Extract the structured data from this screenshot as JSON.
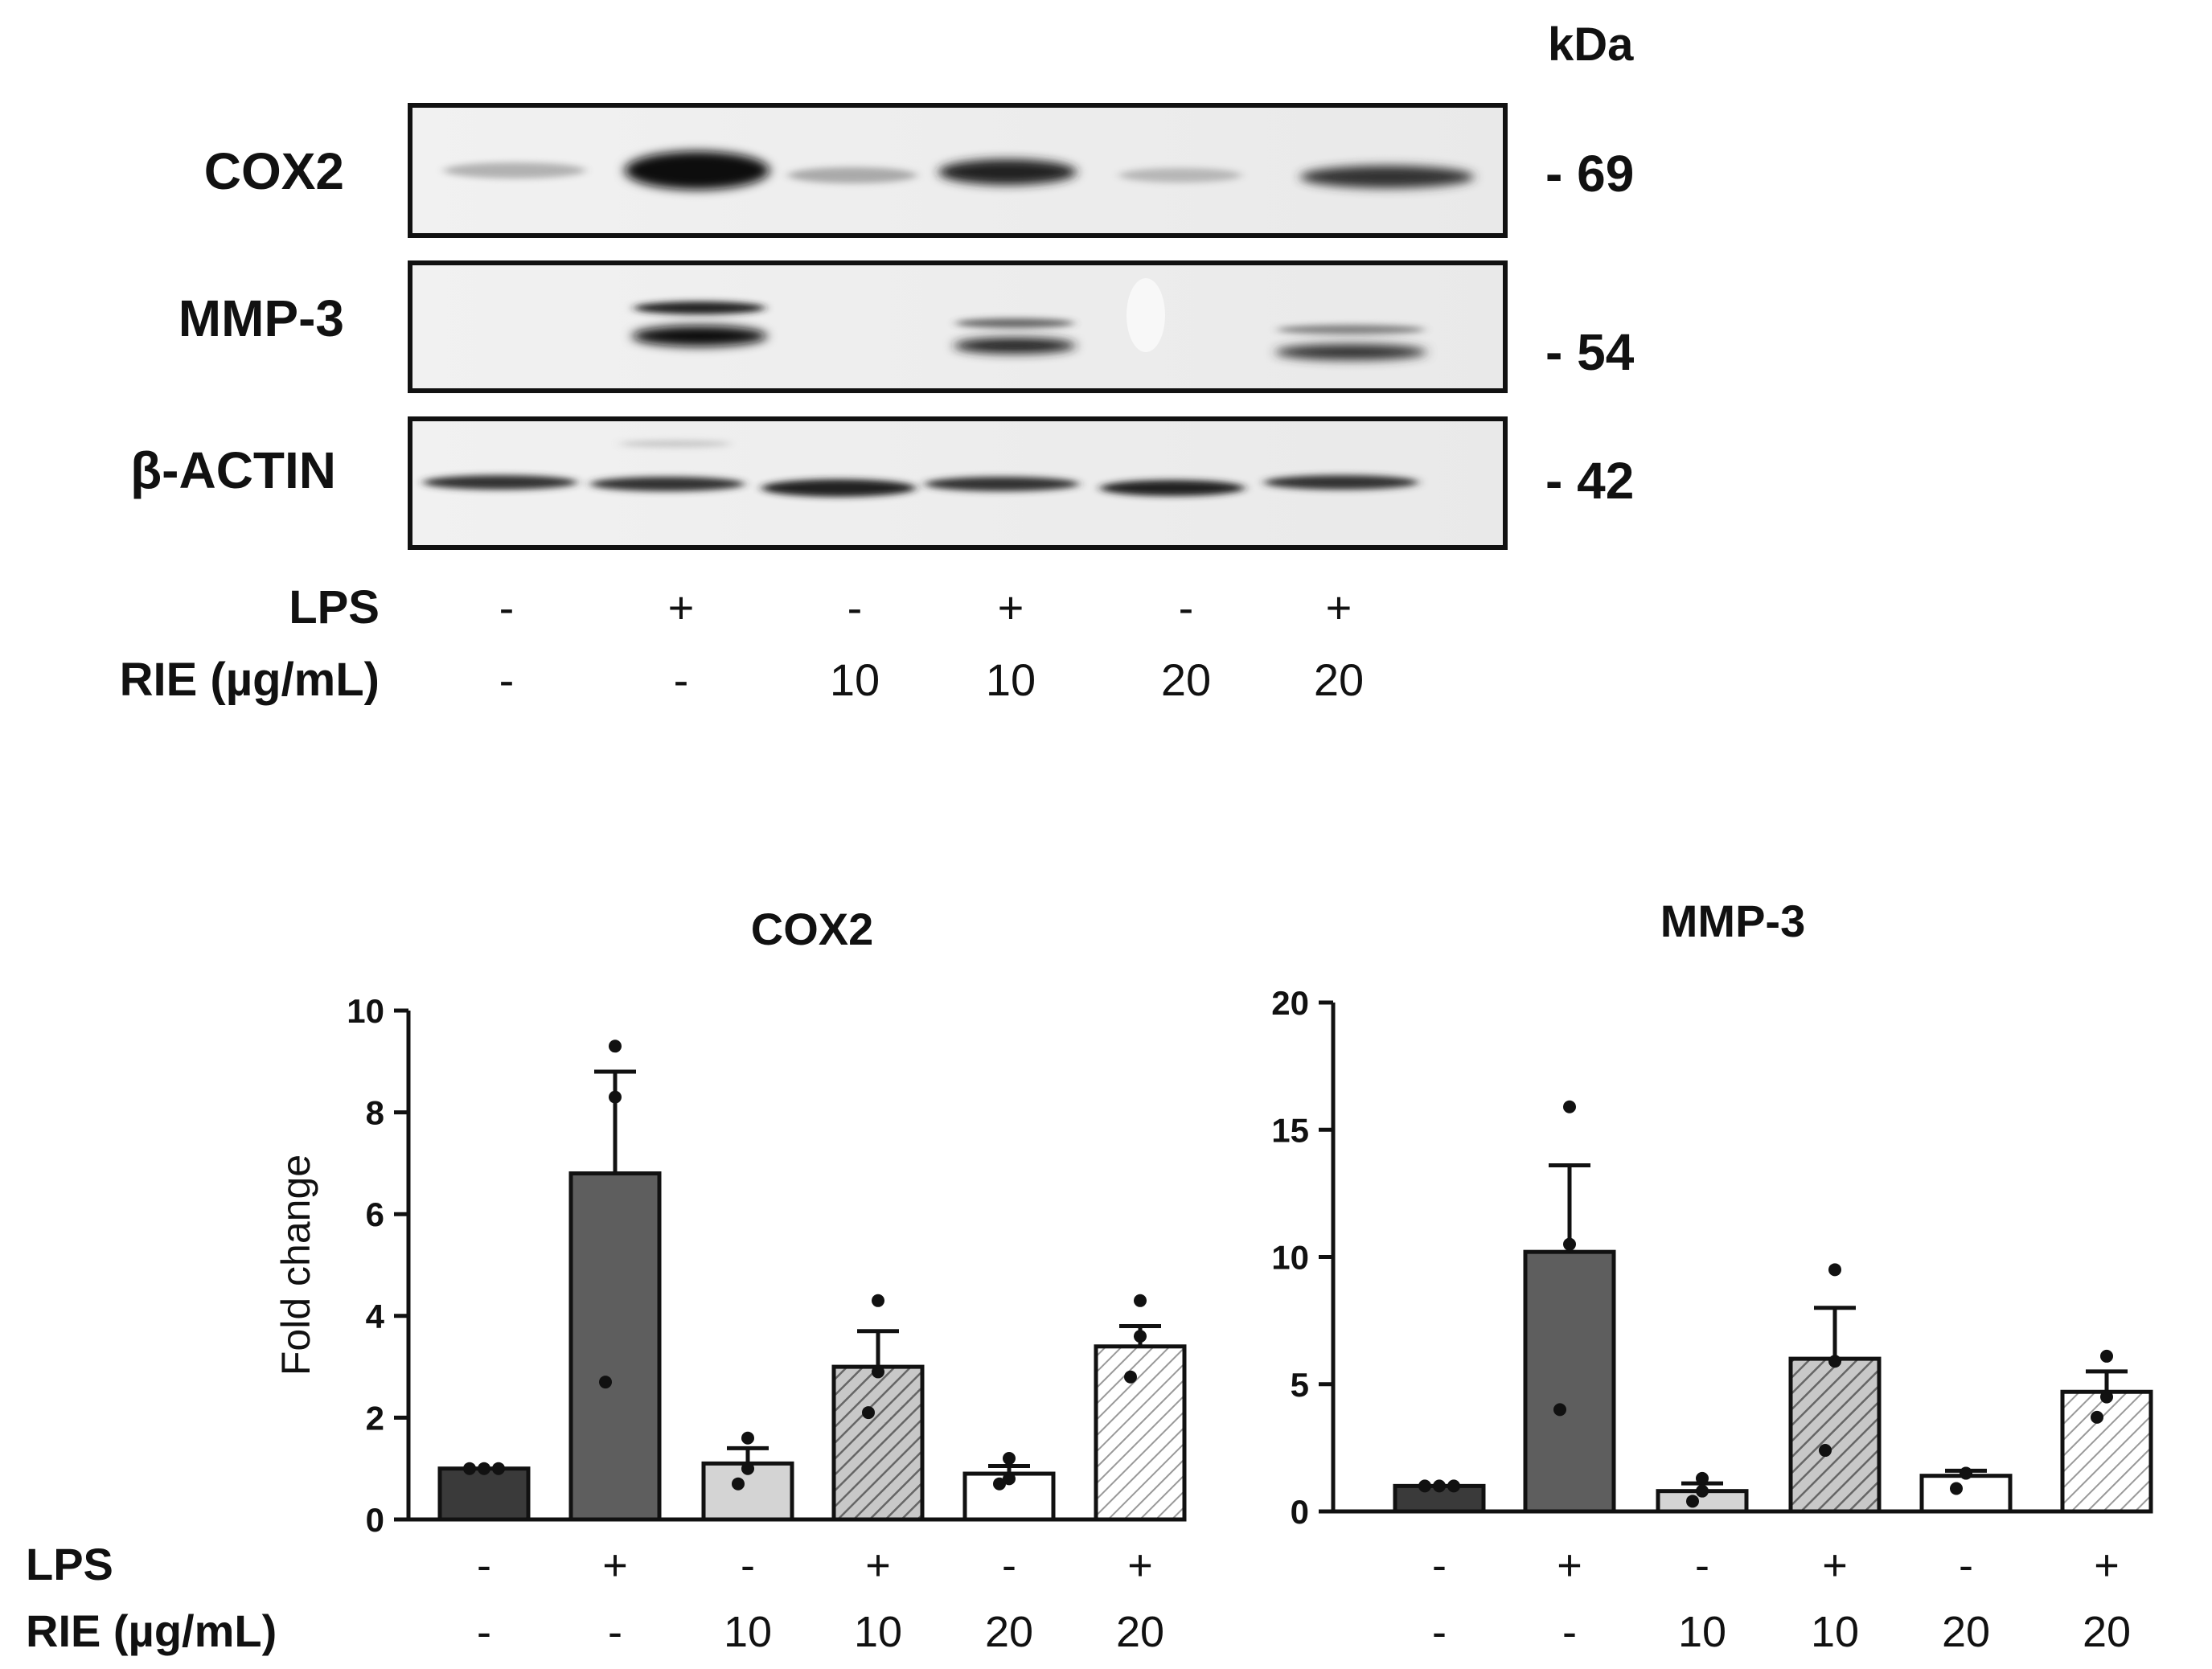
{
  "blot": {
    "kda_label": "kDa",
    "rows": [
      {
        "name": "COX2",
        "marker": "- 69"
      },
      {
        "name": "MMP-3",
        "marker": "- 54"
      },
      {
        "name": "β-ACTIN",
        "marker": "- 42"
      }
    ],
    "lps_label": "LPS",
    "rie_label": "RIE (µg/mL)",
    "lps": [
      "-",
      "+",
      "-",
      "+",
      "-",
      "+"
    ],
    "rie": [
      "-",
      "-",
      "10",
      "10",
      "20",
      "20"
    ]
  },
  "conditions": {
    "lps_label": "LPS",
    "rie_label": "RIE (µg/mL)"
  },
  "chart_data": [
    {
      "type": "bar",
      "title": "COX2",
      "ylabel": "Fold change",
      "xlabel": "",
      "ylim": [
        0,
        10
      ],
      "yticks": [
        0,
        2,
        4,
        6,
        8,
        10
      ],
      "lps": [
        "-",
        "+",
        "-",
        "+",
        "-",
        "+"
      ],
      "rie": [
        "-",
        "-",
        "10",
        "10",
        "20",
        "20"
      ],
      "values": [
        1.0,
        6.8,
        1.1,
        3.0,
        0.9,
        3.4
      ],
      "errors": [
        0.0,
        2.0,
        0.3,
        0.7,
        0.15,
        0.4
      ],
      "points": [
        [
          1.0,
          1.0,
          1.0
        ],
        [
          9.3,
          8.3,
          2.7
        ],
        [
          1.6,
          1.0,
          0.7
        ],
        [
          4.3,
          2.9,
          2.1
        ],
        [
          1.2,
          0.8,
          0.7
        ],
        [
          4.3,
          3.6,
          2.8
        ]
      ],
      "fills": [
        "dark",
        "medium",
        "light",
        "hatch-gray",
        "white",
        "hatch-white"
      ]
    },
    {
      "type": "bar",
      "title": "MMP-3",
      "ylabel": "",
      "xlabel": "",
      "ylim": [
        0,
        20
      ],
      "yticks": [
        0,
        5,
        10,
        15,
        20
      ],
      "lps": [
        "-",
        "+",
        "-",
        "+",
        "-",
        "+"
      ],
      "rie": [
        "-",
        "-",
        "10",
        "10",
        "20",
        "20"
      ],
      "values": [
        1.0,
        10.2,
        0.8,
        6.0,
        1.4,
        4.7
      ],
      "errors": [
        0.0,
        3.4,
        0.3,
        2.0,
        0.2,
        0.8
      ],
      "points": [
        [
          1.0,
          1.0,
          1.0
        ],
        [
          15.9,
          10.5,
          4.0
        ],
        [
          1.3,
          0.8,
          0.4
        ],
        [
          9.5,
          5.9,
          2.4
        ],
        [
          1.5,
          1.5,
          0.9
        ],
        [
          6.1,
          4.5,
          3.7
        ]
      ],
      "fills": [
        "dark",
        "medium",
        "light",
        "hatch-gray",
        "white",
        "hatch-white"
      ]
    }
  ]
}
